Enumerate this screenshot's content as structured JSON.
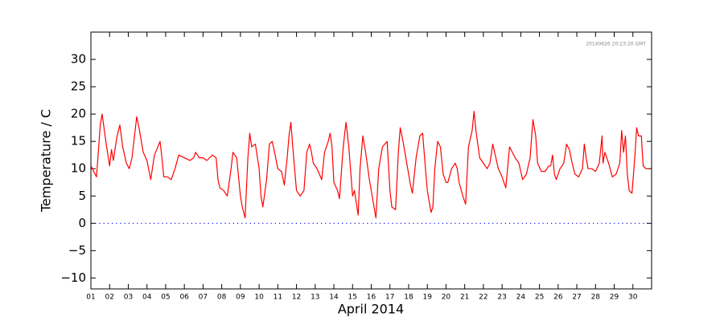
{
  "chart_data": {
    "type": "line",
    "annotation": "20140626 20:23:20 GMT",
    "xlabel": "April 2014",
    "ylabel": "Temperature / C",
    "color": "#ff0000",
    "reference_line": {
      "y": 0,
      "color": "#0000ff"
    },
    "xlim": [
      1,
      31
    ],
    "ylim": [
      -12,
      35
    ],
    "xticks": [
      {
        "value": 1,
        "label": "01"
      },
      {
        "value": 2,
        "label": "02"
      },
      {
        "value": 3,
        "label": "03"
      },
      {
        "value": 4,
        "label": "04"
      },
      {
        "value": 5,
        "label": "05"
      },
      {
        "value": 6,
        "label": "06"
      },
      {
        "value": 7,
        "label": "07"
      },
      {
        "value": 8,
        "label": "08"
      },
      {
        "value": 9,
        "label": "09"
      },
      10,
      11,
      12,
      13,
      14,
      15,
      16,
      17,
      18,
      19,
      20,
      21,
      22,
      23,
      24,
      25,
      26,
      27,
      28,
      29,
      30
    ],
    "yticks": [
      {
        "value": -10,
        "label": "−10"
      },
      {
        "value": -5,
        "label": "−5"
      },
      0,
      5,
      10,
      15,
      20,
      25,
      30
    ],
    "x": [
      1,
      1.3,
      1.5,
      1.6,
      1.8,
      2.0,
      2.1,
      2.2,
      2.4,
      2.55,
      2.7,
      2.9,
      3.05,
      3.2,
      3.45,
      3.6,
      3.8,
      4.0,
      4.2,
      4.4,
      4.7,
      4.8,
      4.9,
      5.1,
      5.3,
      5.5,
      5.7,
      6.0,
      6.3,
      6.5,
      6.6,
      6.8,
      7.0,
      7.2,
      7.5,
      7.7,
      7.8,
      7.9,
      8.1,
      8.3,
      8.5,
      8.6,
      8.8,
      9.0,
      9.1,
      9.25,
      9.4,
      9.5,
      9.6,
      9.8,
      10.0,
      10.1,
      10.2,
      10.4,
      10.55,
      10.7,
      10.8,
      11.0,
      11.2,
      11.35,
      11.5,
      11.6,
      11.7,
      11.8,
      12.0,
      12.2,
      12.4,
      12.55,
      12.7,
      12.8,
      12.9,
      13.1,
      13.35,
      13.5,
      13.7,
      13.8,
      13.9,
      14.0,
      14.2,
      14.3,
      14.5,
      14.65,
      14.8,
      15.0,
      15.1,
      15.3,
      15.4,
      15.55,
      15.7,
      15.9,
      16.1,
      16.25,
      16.4,
      16.6,
      16.85,
      17.0,
      17.1,
      17.3,
      17.45,
      17.55,
      17.7,
      17.9,
      18.1,
      18.2,
      18.4,
      18.6,
      18.75,
      18.9,
      19.0,
      19.2,
      19.3,
      19.4,
      19.55,
      19.7,
      19.85,
      20.0,
      20.1,
      20.3,
      20.5,
      20.6,
      20.7,
      20.9,
      21.05,
      21.2,
      21.4,
      21.5,
      21.6,
      21.8,
      22.0,
      22.2,
      22.35,
      22.5,
      22.6,
      22.8,
      23.0,
      23.2,
      23.4,
      23.55,
      23.7,
      23.9,
      24.0,
      24.1,
      24.3,
      24.5,
      24.65,
      24.8,
      24.9,
      25.1,
      25.3,
      25.5,
      25.6,
      25.7,
      25.8,
      25.9,
      26.1,
      26.3,
      26.45,
      26.6,
      26.75,
      26.9,
      27.1,
      27.3,
      27.4,
      27.5,
      27.6,
      27.8,
      28.0,
      28.2,
      28.35,
      28.4,
      28.5,
      28.7,
      28.9,
      29.1,
      29.3,
      29.4,
      29.5,
      29.6,
      29.7,
      29.8,
      29.95,
      30.1,
      30.2,
      30.3,
      30.45,
      30.55,
      30.7,
      30.85
    ],
    "values": [
      10.5,
      8.5,
      18,
      20,
      15,
      10.5,
      13.5,
      11.5,
      16,
      18,
      14,
      11,
      10,
      12,
      19.5,
      17,
      13,
      11.5,
      8,
      12.5,
      15,
      12,
      8.5,
      8.5,
      8,
      10,
      12.5,
      12,
      11.5,
      12,
      13,
      12,
      12,
      11.5,
      12.5,
      12,
      8,
      6.5,
      6,
      5,
      10,
      13,
      12,
      5,
      3,
      1,
      12,
      16.5,
      14,
      14.5,
      10,
      5,
      3,
      8,
      14.5,
      15,
      13.5,
      10,
      9.5,
      7,
      12,
      16,
      18.5,
      14,
      6,
      5,
      6,
      13,
      14.5,
      13,
      11,
      10,
      8,
      13,
      15,
      16.5,
      14,
      7.5,
      6,
      4.5,
      14,
      18.5,
      14,
      5,
      6,
      1.5,
      10,
      16,
      13,
      8,
      4,
      1,
      10,
      14,
      15,
      6,
      3,
      2.5,
      13,
      17.5,
      15,
      11,
      7,
      5.5,
      12,
      16,
      16.5,
      10,
      6,
      2,
      3,
      10,
      15,
      14,
      9,
      7.5,
      7.5,
      10,
      11,
      10,
      7.5,
      5,
      3.5,
      14,
      17,
      20.5,
      17,
      12,
      11,
      10,
      11,
      14.5,
      13,
      10,
      8.5,
      6.5,
      14,
      13,
      12,
      11,
      9.5,
      8,
      9,
      12,
      19,
      16,
      11,
      9.5,
      9.5,
      10.5,
      10.5,
      12.5,
      9,
      8,
      10,
      11,
      14.5,
      13.5,
      11,
      9,
      8.5,
      10,
      14.5,
      12,
      10,
      10,
      9.5,
      11,
      16,
      11,
      13,
      11,
      8.5,
      9,
      11,
      17,
      13,
      16,
      9,
      6,
      5.5,
      12,
      17.5,
      16,
      16,
      10.5,
      10,
      10
    ]
  }
}
